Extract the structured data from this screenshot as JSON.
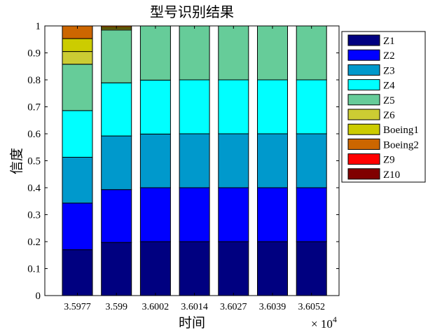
{
  "chart_data": {
    "type": "bar",
    "stacked": true,
    "title": "型号识别结果",
    "xlabel": "时间",
    "ylabel": "信度",
    "x_multiplier": "× 10",
    "x_multiplier_exp": "4",
    "ylim": [
      0,
      1
    ],
    "yticks": [
      "0",
      "0.1",
      "0.2",
      "0.3",
      "0.4",
      "0.5",
      "0.6",
      "0.7",
      "0.8",
      "0.9",
      "1"
    ],
    "categories": [
      "3.5977",
      "3.599",
      "3.6002",
      "3.6014",
      "3.6027",
      "3.6039",
      "3.6052"
    ],
    "legend_position": "right-outside",
    "series": [
      {
        "name": "Z1",
        "color": "#000080",
        "values": [
          0.17,
          0.197,
          0.2,
          0.2,
          0.2,
          0.2,
          0.2
        ]
      },
      {
        "name": "Z2",
        "color": "#0000ff",
        "values": [
          0.173,
          0.196,
          0.2,
          0.2,
          0.2,
          0.2,
          0.2
        ]
      },
      {
        "name": "Z3",
        "color": "#0099cc",
        "values": [
          0.17,
          0.199,
          0.199,
          0.2,
          0.2,
          0.2,
          0.2
        ]
      },
      {
        "name": "Z4",
        "color": "#00ffff",
        "values": [
          0.173,
          0.197,
          0.2,
          0.2,
          0.2,
          0.2,
          0.2
        ]
      },
      {
        "name": "Z5",
        "color": "#66cc99",
        "values": [
          0.172,
          0.196,
          0.201,
          0.2,
          0.2,
          0.2,
          0.2
        ]
      },
      {
        "name": "Z6",
        "color": "#cccc33",
        "values": [
          0.047,
          0.005,
          0,
          0,
          0,
          0,
          0
        ]
      },
      {
        "name": "Boeing1",
        "color": "#cccc00",
        "values": [
          0.048,
          0.005,
          0,
          0,
          0,
          0,
          0
        ]
      },
      {
        "name": "Boeing2",
        "color": "#cc6600",
        "values": [
          0.047,
          0.005,
          0,
          0,
          0,
          0,
          0
        ]
      },
      {
        "name": "Z9",
        "color": "#ff0000",
        "values": [
          0,
          0,
          0,
          0,
          0,
          0,
          0
        ]
      },
      {
        "name": "Z10",
        "color": "#800000",
        "values": [
          0,
          0,
          0,
          0,
          0,
          0,
          0
        ]
      }
    ]
  }
}
